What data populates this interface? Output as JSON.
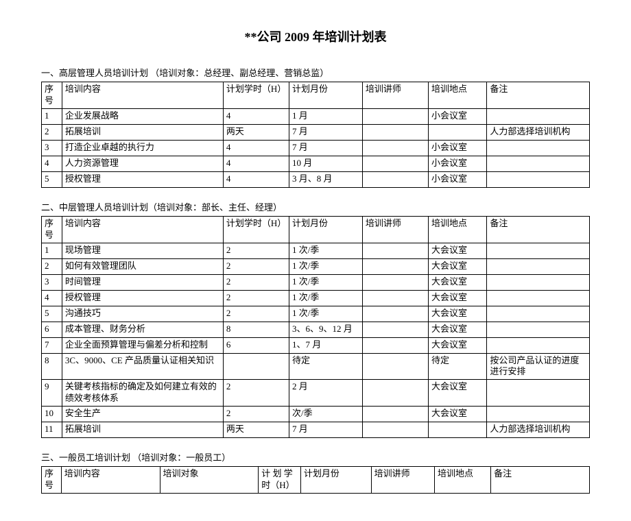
{
  "title": "**公司 2009 年培训计划表",
  "section1": {
    "header": "一、高层管理人员培训计划 （培训对象：总经理、副总经理、营销总监）",
    "columns": [
      "序号",
      "培训内容",
      "计划学时（H）",
      "计划月份",
      "培训讲师",
      "培训地点",
      "备注"
    ],
    "rows": [
      [
        "1",
        "企业发展战略",
        "4",
        "1 月",
        "",
        "小会议室",
        ""
      ],
      [
        "2",
        "拓展培训",
        "两天",
        "7 月",
        "",
        "",
        "人力部选择培训机构"
      ],
      [
        "3",
        "打造企业卓越的执行力",
        "4",
        "7 月",
        "",
        "小会议室",
        ""
      ],
      [
        "4",
        "人力资源管理",
        "4",
        "10 月",
        "",
        "小会议室",
        ""
      ],
      [
        "5",
        "授权管理",
        "4",
        "3 月、8 月",
        "",
        "小会议室",
        ""
      ]
    ]
  },
  "section2": {
    "header": "二、中层管理人员培训计划（培训对象：部长、主任、经理）",
    "columns": [
      "序号",
      "培训内容",
      "计划学时（H）",
      "计划月份",
      "培训讲师",
      "培训地点",
      "备注"
    ],
    "rows": [
      [
        "1",
        "现场管理",
        "2",
        "1 次/季",
        "",
        "大会议室",
        ""
      ],
      [
        "2",
        "如何有效管理团队",
        "2",
        "1 次/季",
        "",
        "大会议室",
        ""
      ],
      [
        "3",
        "时间管理",
        "2",
        "1 次/季",
        "",
        "大会议室",
        ""
      ],
      [
        "4",
        "授权管理",
        "2",
        "1 次/季",
        "",
        "大会议室",
        ""
      ],
      [
        "5",
        "沟通技巧",
        "2",
        "1 次/季",
        "",
        "大会议室",
        ""
      ],
      [
        "6",
        "成本管理、财务分析",
        "8",
        "3、6、9、12 月",
        "",
        "大会议室",
        ""
      ],
      [
        "7",
        "企业全面预算管理与偏差分析和控制",
        "6",
        "1、7 月",
        "",
        "大会议室",
        ""
      ],
      [
        "8",
        "3C、9000、CE 产品质量认证相关知识",
        "",
        "待定",
        "",
        "待定",
        "按公司产品认证的进度进行安排"
      ],
      [
        "9",
        "关键考核指标的确定及如何建立有效的绩效考核体系",
        "2",
        "2 月",
        "",
        "大会议室",
        ""
      ],
      [
        "10",
        "安全生产",
        "2",
        "次/季",
        "",
        "大会议室",
        ""
      ],
      [
        "11",
        "拓展培训",
        "两天",
        "7 月",
        "",
        "",
        "人力部选择培训机构"
      ]
    ]
  },
  "section3": {
    "header": "三、一般员工培训计划 （培训对象：一般员工）",
    "columns": [
      "序号",
      "培训内容",
      "培训对象",
      "计 划 学 时（H）",
      "计划月份",
      "培训讲师",
      "培训地点",
      "备注"
    ]
  }
}
